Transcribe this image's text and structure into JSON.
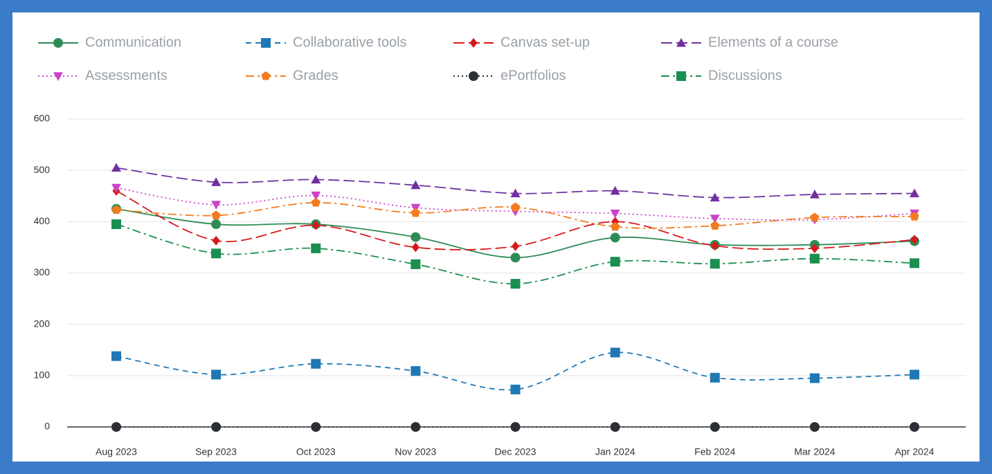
{
  "chart_data": {
    "type": "line",
    "categories": [
      "Aug 2023",
      "Sep 2023",
      "Oct 2023",
      "Nov 2023",
      "Dec 2023",
      "Jan 2024",
      "Feb 2024",
      "Mar 2024",
      "Apr 2024"
    ],
    "ylim": [
      0,
      600
    ],
    "yticks": [
      0,
      100,
      200,
      300,
      400,
      500,
      600
    ],
    "grid": true,
    "legend": "top",
    "series": [
      {
        "name": "Communication",
        "color": "#2e8b57",
        "marker": "circle",
        "dash": "solid",
        "values": [
          425,
          395,
          395,
          370,
          330,
          369,
          355,
          355,
          362
        ]
      },
      {
        "name": "Collaborative tools",
        "color": "#1f78b4",
        "marker": "square",
        "dash": "dashed",
        "values": [
          138,
          102,
          123,
          109,
          73,
          145,
          96,
          95,
          102
        ]
      },
      {
        "name": "Canvas set-up",
        "color": "#d7191c",
        "marker": "diamond",
        "dash": "longdash",
        "values": [
          460,
          363,
          393,
          350,
          352,
          400,
          353,
          348,
          365
        ]
      },
      {
        "name": "Elements of a course",
        "color": "#7030a0",
        "marker": "triangle",
        "dash": "longdash",
        "values": [
          505,
          477,
          482,
          471,
          455,
          460,
          447,
          453,
          455
        ]
      },
      {
        "name": "Assessments",
        "color": "#cc44cc",
        "marker": "triangle-down",
        "dash": "dotted",
        "values": [
          466,
          433,
          451,
          427,
          420,
          416,
          406,
          404,
          416
        ]
      },
      {
        "name": "Grades",
        "color": "#f47b20",
        "marker": "pentagon",
        "dash": "dashdot",
        "values": [
          423,
          412,
          437,
          417,
          428,
          390,
          392,
          408,
          410
        ]
      },
      {
        "name": "ePortfolios",
        "color": "#2b2f33",
        "marker": "circle",
        "dash": "dotted",
        "values": [
          0,
          0,
          0,
          0,
          0,
          0,
          0,
          0,
          0
        ]
      },
      {
        "name": "Discussions",
        "color": "#1a8f4f",
        "marker": "square",
        "dash": "dashdot",
        "values": [
          395,
          338,
          348,
          317,
          279,
          322,
          318,
          328,
          319
        ]
      }
    ]
  }
}
